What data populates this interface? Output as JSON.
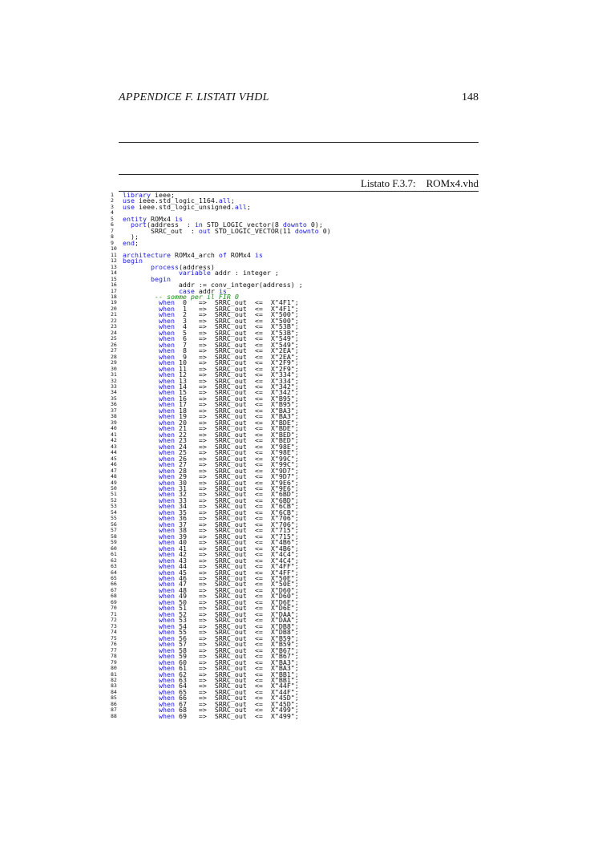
{
  "header": {
    "running_head": "APPENDICE F.  LISTATI VHDL",
    "page_number": "148"
  },
  "caption": "Listato F.3.7:    ROMx4.vhd",
  "colors": {
    "keyword": "#1a1ad8",
    "comment": "#1a8a1a",
    "text": "#111111"
  },
  "keywords": [
    "library",
    "use",
    "all",
    "entity",
    "is",
    "port",
    "in",
    "out",
    "downto",
    "end",
    "architecture",
    "of",
    "begin",
    "process",
    "variable",
    "case",
    "when"
  ],
  "lines": [
    "library ieee;",
    "use ieee.std_logic_1164.all;",
    "use ieee.std_logic_unsigned.all;",
    "",
    "entity ROMx4 is",
    "  port(address  : in STD_LOGIC_vector(8 downto 0);",
    "       SRRC_out  : out STD_LOGIC_VECTOR(11 downto 0)",
    "  );",
    "end;",
    "",
    "architecture ROMx4_arch of ROMx4 is",
    "begin",
    "       process(address)",
    "              variable addr : integer ;",
    "       begin",
    "              addr := conv_integer(address) ;",
    "              case addr is",
    "        -- somme per il FIR 0",
    "         when  0   =>  SRRC_out  <=  X\"4F1\";",
    "         when  1   =>  SRRC_out  <=  X\"4F1\";",
    "         when  2   =>  SRRC_out  <=  X\"500\";",
    "         when  3   =>  SRRC_out  <=  X\"500\";",
    "         when  4   =>  SRRC_out  <=  X\"53B\";",
    "         when  5   =>  SRRC_out  <=  X\"53B\";",
    "         when  6   =>  SRRC_out  <=  X\"549\";",
    "         when  7   =>  SRRC_out  <=  X\"549\";",
    "         when  8   =>  SRRC_out  <=  X\"2EA\";",
    "         when  9   =>  SRRC_out  <=  X\"2EA\";",
    "         when 10   =>  SRRC_out  <=  X\"2F9\";",
    "         when 11   =>  SRRC_out  <=  X\"2F9\";",
    "         when 12   =>  SRRC_out  <=  X\"334\";",
    "         when 13   =>  SRRC_out  <=  X\"334\";",
    "         when 14   =>  SRRC_out  <=  X\"342\";",
    "         when 15   =>  SRRC_out  <=  X\"342\";",
    "         when 16   =>  SRRC_out  <=  X\"B95\";",
    "         when 17   =>  SRRC_out  <=  X\"B95\";",
    "         when 18   =>  SRRC_out  <=  X\"BA3\";",
    "         when 19   =>  SRRC_out  <=  X\"BA3\";",
    "         when 20   =>  SRRC_out  <=  X\"BDE\";",
    "         when 21   =>  SRRC_out  <=  X\"BDE\";",
    "         when 22   =>  SRRC_out  <=  X\"BED\";",
    "         when 23   =>  SRRC_out  <=  X\"BED\";",
    "         when 24   =>  SRRC_out  <=  X\"98E\";",
    "         when 25   =>  SRRC_out  <=  X\"98E\";",
    "         when 26   =>  SRRC_out  <=  X\"99C\";",
    "         when 27   =>  SRRC_out  <=  X\"99C\";",
    "         when 28   =>  SRRC_out  <=  X\"9D7\";",
    "         when 29   =>  SRRC_out  <=  X\"9D7\";",
    "         when 30   =>  SRRC_out  <=  X\"9E6\";",
    "         when 31   =>  SRRC_out  <=  X\"9E6\";",
    "         when 32   =>  SRRC_out  <=  X\"6BD\";",
    "         when 33   =>  SRRC_out  <=  X\"6BD\";",
    "         when 34   =>  SRRC_out  <=  X\"6CB\";",
    "         when 35   =>  SRRC_out  <=  X\"6CB\";",
    "         when 36   =>  SRRC_out  <=  X\"706\";",
    "         when 37   =>  SRRC_out  <=  X\"706\";",
    "         when 38   =>  SRRC_out  <=  X\"715\";",
    "         when 39   =>  SRRC_out  <=  X\"715\";",
    "         when 40   =>  SRRC_out  <=  X\"4B6\";",
    "         when 41   =>  SRRC_out  <=  X\"4B6\";",
    "         when 42   =>  SRRC_out  <=  X\"4C4\";",
    "         when 43   =>  SRRC_out  <=  X\"4C4\";",
    "         when 44   =>  SRRC_out  <=  X\"4FF\";",
    "         when 45   =>  SRRC_out  <=  X\"4FF\";",
    "         when 46   =>  SRRC_out  <=  X\"50E\";",
    "         when 47   =>  SRRC_out  <=  X\"50E\";",
    "         when 48   =>  SRRC_out  <=  X\"D60\";",
    "         when 49   =>  SRRC_out  <=  X\"D60\";",
    "         when 50   =>  SRRC_out  <=  X\"D6E\";",
    "         when 51   =>  SRRC_out  <=  X\"D6E\";",
    "         when 52   =>  SRRC_out  <=  X\"DAA\";",
    "         when 53   =>  SRRC_out  <=  X\"DAA\";",
    "         when 54   =>  SRRC_out  <=  X\"DB8\";",
    "         when 55   =>  SRRC_out  <=  X\"DB8\";",
    "         when 56   =>  SRRC_out  <=  X\"B59\";",
    "         when 57   =>  SRRC_out  <=  X\"B59\";",
    "         when 58   =>  SRRC_out  <=  X\"B67\";",
    "         when 59   =>  SRRC_out  <=  X\"B67\";",
    "         when 60   =>  SRRC_out  <=  X\"BA3\";",
    "         when 61   =>  SRRC_out  <=  X\"BA3\";",
    "         when 62   =>  SRRC_out  <=  X\"BB1\";",
    "         when 63   =>  SRRC_out  <=  X\"BB1\";",
    "         when 64   =>  SRRC_out  <=  X\"44F\";",
    "         when 65   =>  SRRC_out  <=  X\"44F\";",
    "         when 66   =>  SRRC_out  <=  X\"45D\";",
    "         when 67   =>  SRRC_out  <=  X\"45D\";",
    "         when 68   =>  SRRC_out  <=  X\"499\";",
    "         when 69   =>  SRRC_out  <=  X\"499\";"
  ]
}
